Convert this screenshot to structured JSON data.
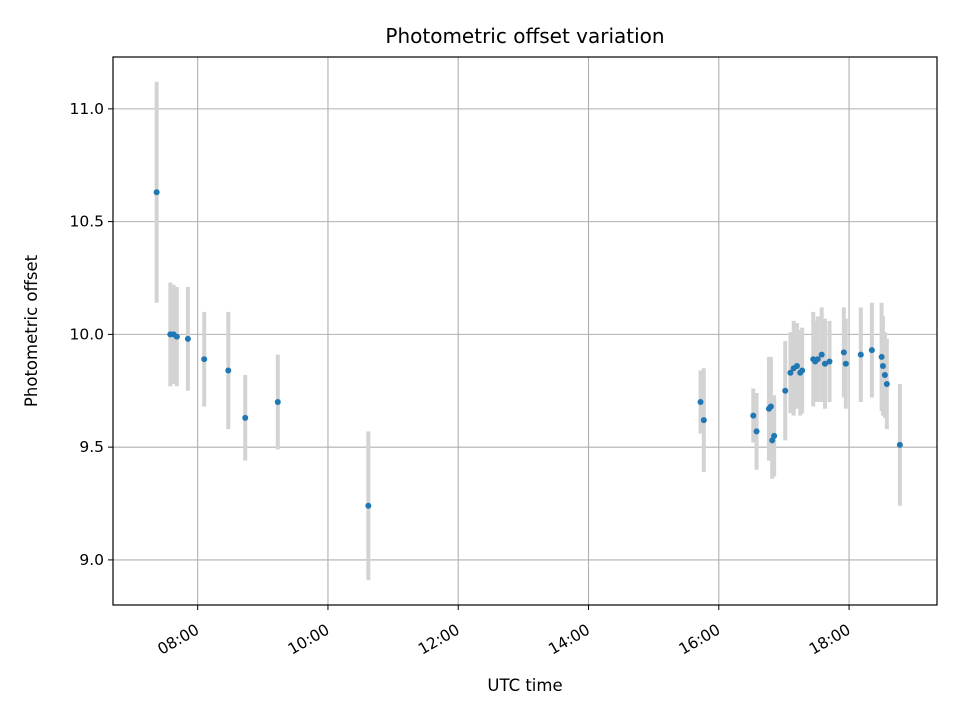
{
  "chart_data": {
    "type": "scatter",
    "title": "Photometric offset variation",
    "xlabel": "UTC time",
    "ylabel": "Photometric offset",
    "x_unit": "hours UTC",
    "xlim": [
      6.7,
      19.35
    ],
    "ylim": [
      8.8,
      11.23
    ],
    "x_ticks": [
      {
        "value": 8,
        "label": "08:00"
      },
      {
        "value": 10,
        "label": "10:00"
      },
      {
        "value": 12,
        "label": "12:00"
      },
      {
        "value": 14,
        "label": "14:00"
      },
      {
        "value": 16,
        "label": "16:00"
      },
      {
        "value": 18,
        "label": "18:00"
      }
    ],
    "y_ticks": [
      {
        "value": 9.0,
        "label": "9.0"
      },
      {
        "value": 9.5,
        "label": "9.5"
      },
      {
        "value": 10.0,
        "label": "10.0"
      },
      {
        "value": 10.5,
        "label": "10.5"
      },
      {
        "value": 11.0,
        "label": "11.0"
      }
    ],
    "grid": true,
    "point_color": "#1f77b4",
    "errorbar_color": "#d3d3d3",
    "points": [
      {
        "x": 7.37,
        "y": 10.63,
        "err": 0.49
      },
      {
        "x": 7.58,
        "y": 10.0,
        "err": 0.23
      },
      {
        "x": 7.63,
        "y": 10.0,
        "err": 0.22
      },
      {
        "x": 7.68,
        "y": 9.99,
        "err": 0.22
      },
      {
        "x": 7.85,
        "y": 9.98,
        "err": 0.23
      },
      {
        "x": 8.1,
        "y": 9.89,
        "err": 0.21
      },
      {
        "x": 8.47,
        "y": 9.84,
        "err": 0.26
      },
      {
        "x": 8.73,
        "y": 9.63,
        "err": 0.19
      },
      {
        "x": 9.23,
        "y": 9.7,
        "err": 0.21
      },
      {
        "x": 10.62,
        "y": 9.24,
        "err": 0.33
      },
      {
        "x": 15.72,
        "y": 9.7,
        "err": 0.14
      },
      {
        "x": 15.77,
        "y": 9.62,
        "err": 0.23
      },
      {
        "x": 16.53,
        "y": 9.64,
        "err": 0.12
      },
      {
        "x": 16.58,
        "y": 9.57,
        "err": 0.17
      },
      {
        "x": 16.77,
        "y": 9.67,
        "err": 0.23
      },
      {
        "x": 16.8,
        "y": 9.68,
        "err": 0.22
      },
      {
        "x": 16.82,
        "y": 9.53,
        "err": 0.17
      },
      {
        "x": 16.85,
        "y": 9.55,
        "err": 0.18
      },
      {
        "x": 17.02,
        "y": 9.75,
        "err": 0.22
      },
      {
        "x": 17.1,
        "y": 9.83,
        "err": 0.18
      },
      {
        "x": 17.15,
        "y": 9.85,
        "err": 0.21
      },
      {
        "x": 17.2,
        "y": 9.86,
        "err": 0.19
      },
      {
        "x": 17.25,
        "y": 9.83,
        "err": 0.19
      },
      {
        "x": 17.28,
        "y": 9.84,
        "err": 0.19
      },
      {
        "x": 17.45,
        "y": 9.89,
        "err": 0.21
      },
      {
        "x": 17.48,
        "y": 9.88,
        "err": 0.18
      },
      {
        "x": 17.52,
        "y": 9.89,
        "err": 0.19
      },
      {
        "x": 17.58,
        "y": 9.91,
        "err": 0.21
      },
      {
        "x": 17.63,
        "y": 9.87,
        "err": 0.2
      },
      {
        "x": 17.7,
        "y": 9.88,
        "err": 0.18
      },
      {
        "x": 17.92,
        "y": 9.92,
        "err": 0.2
      },
      {
        "x": 17.95,
        "y": 9.87,
        "err": 0.2
      },
      {
        "x": 18.18,
        "y": 9.91,
        "err": 0.21
      },
      {
        "x": 18.35,
        "y": 9.93,
        "err": 0.21
      },
      {
        "x": 18.5,
        "y": 9.9,
        "err": 0.24
      },
      {
        "x": 18.52,
        "y": 9.86,
        "err": 0.22
      },
      {
        "x": 18.55,
        "y": 9.82,
        "err": 0.19
      },
      {
        "x": 18.58,
        "y": 9.78,
        "err": 0.2
      },
      {
        "x": 18.78,
        "y": 9.51,
        "err": 0.27
      }
    ]
  }
}
